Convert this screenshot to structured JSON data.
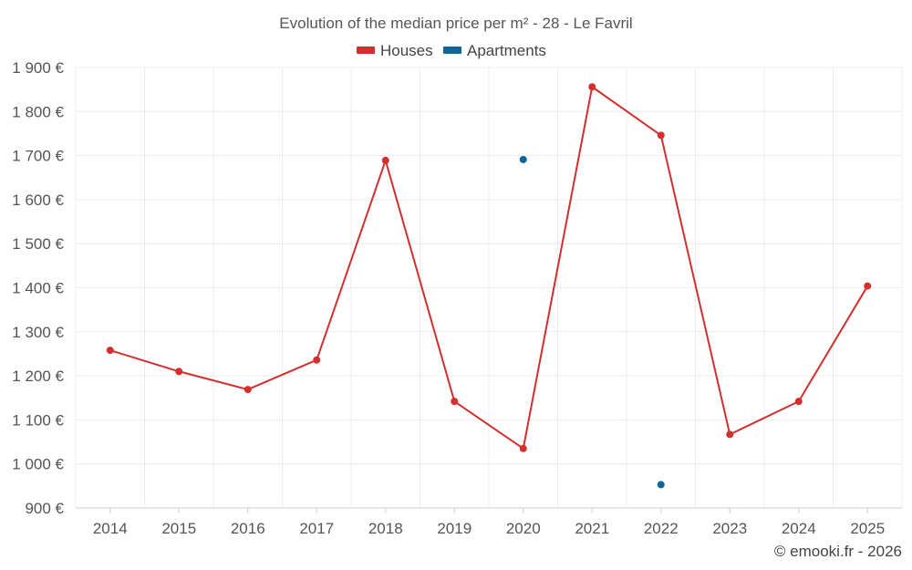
{
  "chart_data": {
    "type": "line",
    "title": "Evolution of the median price per m² - 28 - Le Favril",
    "categories": [
      "2014",
      "2015",
      "2016",
      "2017",
      "2018",
      "2019",
      "2020",
      "2021",
      "2022",
      "2023",
      "2024",
      "2025"
    ],
    "ylim": [
      900,
      1900
    ],
    "yticks": [
      900,
      1000,
      1100,
      1200,
      1300,
      1400,
      1500,
      1600,
      1700,
      1800,
      1900
    ],
    "ytick_labels": [
      "900 €",
      "1 000 €",
      "1 100 €",
      "1 200 €",
      "1 300 €",
      "1 400 €",
      "1 500 €",
      "1 600 €",
      "1 700 €",
      "1 800 €",
      "1 900 €"
    ],
    "grid": true,
    "legend_position": "top-center",
    "series": [
      {
        "name": "Houses",
        "color": "#d32f2f",
        "values": [
          1258,
          1210,
          1169,
          1236,
          1689,
          1142,
          1035,
          1856,
          1746,
          1067,
          1142,
          1404
        ]
      },
      {
        "name": "Apartments",
        "color": "#0d6699",
        "values": [
          null,
          null,
          null,
          null,
          null,
          null,
          1691,
          null,
          953,
          null,
          null,
          null
        ]
      }
    ]
  },
  "footer": {
    "credit": "© emooki.fr - 2026"
  }
}
